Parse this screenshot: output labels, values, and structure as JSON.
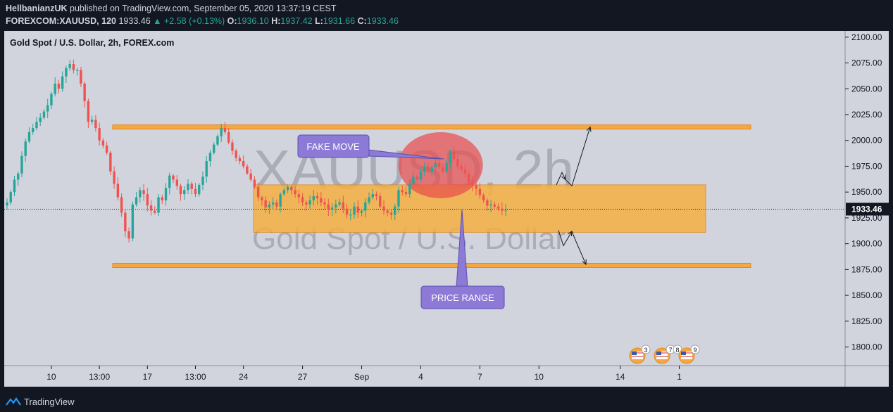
{
  "header": {
    "author": "HellbanianzUK",
    "published_text": " published on TradingView.com, September 05, 2020 13:37:19 CEST",
    "symbol": "FOREXCOM:XAUUSD, 120",
    "last": "1933.46",
    "change": "+2.58 (+0.13%)",
    "o_label": "O:",
    "o_value": "1936.10",
    "h_label": "H:",
    "h_value": "1937.42",
    "l_label": "L:",
    "l_value": "1931.66",
    "c_label": "C:",
    "c_value": "1933.46",
    "up_arrow": "▲"
  },
  "footer": {
    "brand": "TradingView"
  },
  "colors": {
    "background": "#d1d4dc",
    "up": "#26a69a",
    "down": "#ef5350",
    "band": "#f5a742",
    "range": "#f5b041",
    "callout": "#8c7ad6",
    "bubble": "#ea4c4c"
  },
  "chart_data": {
    "type": "candlestick",
    "title": "Gold Spot / U.S. Dollar, 2h, FOREX.com",
    "watermark_symbol": "XAUUSD, 2h",
    "watermark_name": "Gold Spot / U.S. Dollar",
    "y_ticks": [
      2100,
      2075,
      2050,
      2025,
      2000,
      1975,
      1950,
      1925,
      1900,
      1875,
      1850,
      1825,
      1800
    ],
    "y_tick_labels": [
      "2100.00",
      "2075.00",
      "2050.00",
      "2025.00",
      "2000.00",
      "1975.00",
      "1950.00",
      "1925.00",
      "1900.00",
      "1875.00",
      "1850.00",
      "1825.00",
      "1800.00"
    ],
    "ylim": [
      1782,
      2106
    ],
    "x_ticks": [
      {
        "label": "10",
        "bar": 12
      },
      {
        "label": "13:00",
        "bar": 25
      },
      {
        "label": "17",
        "bar": 38
      },
      {
        "label": "13:00",
        "bar": 51
      },
      {
        "label": "24",
        "bar": 64
      },
      {
        "label": "27",
        "bar": 80
      },
      {
        "label": "Sep",
        "bar": 96
      },
      {
        "label": "4",
        "bar": 112
      },
      {
        "label": "7",
        "bar": 128
      },
      {
        "label": "10",
        "bar": 144
      },
      {
        "label": "14",
        "bar": 166
      },
      {
        "label": "1",
        "bar": 182
      }
    ],
    "last_price": 1933.46,
    "last_price_label": "1933.46",
    "series": [
      {
        "name": "XAUUSD",
        "close": [
          1940,
          1950,
          1962,
          1968,
          1985,
          1999,
          2008,
          2012,
          2018,
          2022,
          2028,
          2034,
          2045,
          2055,
          2050,
          2062,
          2070,
          2074,
          2068,
          2068,
          2055,
          2038,
          2018,
          2020,
          2012,
          2000,
          1995,
          1988,
          1970,
          1958,
          1945,
          1930,
          1912,
          1905,
          1938,
          1945,
          1952,
          1948,
          1937,
          1932,
          1930,
          1945,
          1942,
          1954,
          1966,
          1962,
          1956,
          1948,
          1952,
          1958,
          1953,
          1948,
          1957,
          1965,
          1980,
          1988,
          1996,
          2004,
          2012,
          2008,
          1998,
          1990,
          1983,
          1980,
          1975,
          1968,
          1962,
          1955,
          1945,
          1942,
          1935,
          1938,
          1940,
          1936,
          1948,
          1952,
          1955,
          1952,
          1948,
          1945,
          1940,
          1938,
          1942,
          1946,
          1944,
          1940,
          1938,
          1933,
          1935,
          1938,
          1940,
          1934,
          1928,
          1928,
          1936,
          1930,
          1932,
          1940,
          1945,
          1948,
          1946,
          1936,
          1932,
          1930,
          1928,
          1936,
          1952,
          1950,
          1948,
          1958,
          1965,
          1962,
          1970,
          1975,
          1970,
          1974,
          1978,
          1974,
          1970,
          1978,
          1989,
          1982,
          1975,
          1972,
          1968,
          1960,
          1957,
          1953,
          1947,
          1942,
          1937,
          1938,
          1936,
          1934,
          1932,
          1933
        ]
      }
    ],
    "annotations": {
      "resistance": 2013,
      "support": 1879,
      "range_top": 1957,
      "range_bottom": 1911,
      "fake_move_label": "FAKE MOVE",
      "price_range_label": "PRICE RANGE",
      "event_badges": [
        "3",
        "7",
        "8",
        "9"
      ]
    }
  }
}
